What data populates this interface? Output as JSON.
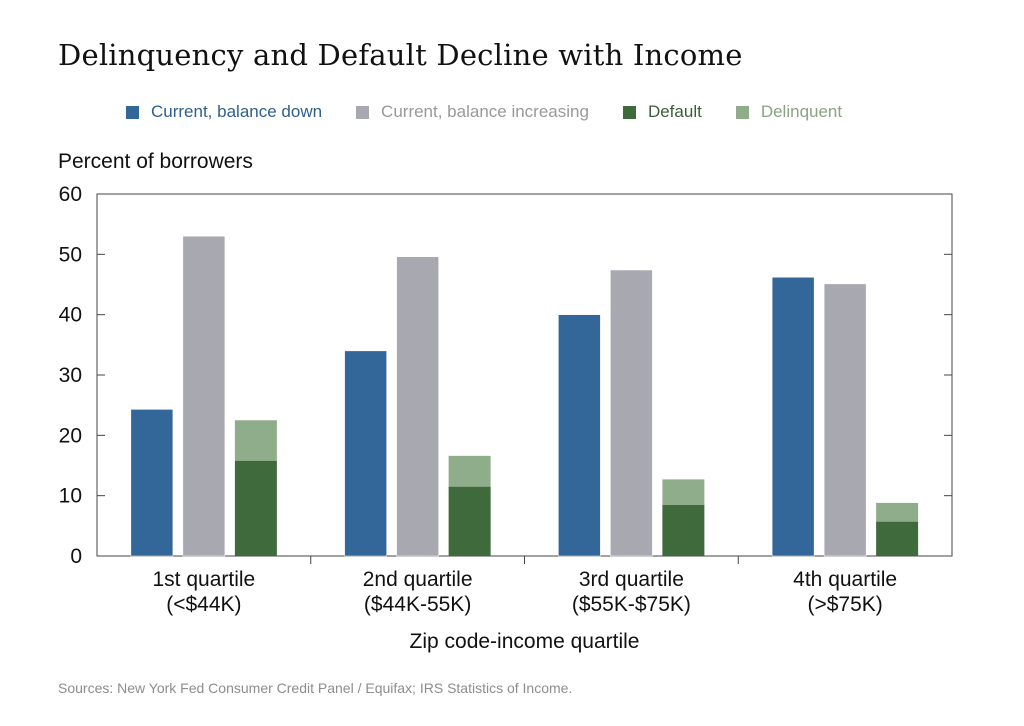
{
  "chart_data": {
    "type": "bar",
    "title": "Delinquency and Default Decline with Income",
    "ylabel": "Percent of borrowers",
    "xlabel": "Zip code-income quartile",
    "ylim": [
      0,
      60
    ],
    "yticks": [
      0,
      10,
      20,
      30,
      40,
      50,
      60
    ],
    "grid": false,
    "legend_position": "top",
    "categories": [
      {
        "line1": "1st quartile",
        "line2": "(<$44K)"
      },
      {
        "line1": "2nd quartile",
        "line2": "($44K-55K)"
      },
      {
        "line1": "3rd quartile",
        "line2": "($55K-$75K)"
      },
      {
        "line1": "4th quartile",
        "line2": "(>$75K)"
      }
    ],
    "series": [
      {
        "name": "Current, balance down",
        "color": "#336699",
        "values": [
          24.3,
          34.0,
          40.0,
          46.2
        ]
      },
      {
        "name": "Current, balance increasing",
        "color": "#a8a8b0",
        "values": [
          53.0,
          49.6,
          47.4,
          45.1
        ]
      },
      {
        "name": "Default",
        "color": "#3f6b3c",
        "values": [
          15.8,
          11.5,
          8.5,
          5.7
        ],
        "stack": "dd"
      },
      {
        "name": "Delinquent",
        "color": "#8fad8a",
        "values": [
          6.7,
          5.1,
          4.2,
          3.1
        ],
        "stack": "dd"
      }
    ]
  },
  "legend_text_colors": [
    "#2f5f8f",
    "#999999",
    "#3a5f36",
    "#8aa383"
  ],
  "source": "Sources: New York Fed Consumer Credit Panel / Equifax; IRS Statistics of Income."
}
